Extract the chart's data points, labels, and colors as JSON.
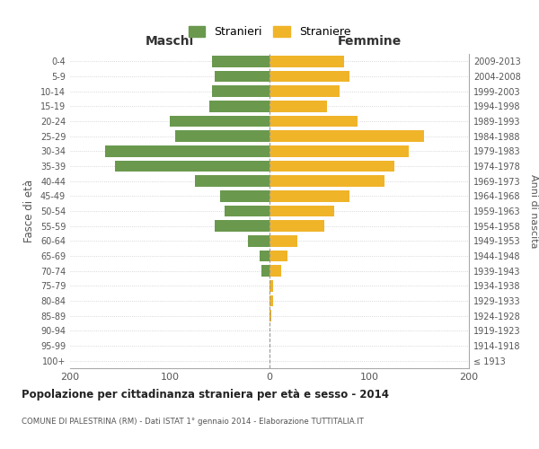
{
  "age_groups": [
    "100+",
    "95-99",
    "90-94",
    "85-89",
    "80-84",
    "75-79",
    "70-74",
    "65-69",
    "60-64",
    "55-59",
    "50-54",
    "45-49",
    "40-44",
    "35-39",
    "30-34",
    "25-29",
    "20-24",
    "15-19",
    "10-14",
    "5-9",
    "0-4"
  ],
  "birth_years": [
    "≤ 1913",
    "1914-1918",
    "1919-1923",
    "1924-1928",
    "1929-1933",
    "1934-1938",
    "1939-1943",
    "1944-1948",
    "1949-1953",
    "1954-1958",
    "1959-1963",
    "1964-1968",
    "1969-1973",
    "1974-1978",
    "1979-1983",
    "1984-1988",
    "1989-1993",
    "1994-1998",
    "1999-2003",
    "2004-2008",
    "2009-2013"
  ],
  "males": [
    0,
    0,
    0,
    0,
    0,
    0,
    8,
    10,
    22,
    55,
    45,
    50,
    75,
    155,
    165,
    95,
    100,
    60,
    58,
    55,
    58
  ],
  "females": [
    0,
    0,
    0,
    2,
    4,
    4,
    12,
    18,
    28,
    55,
    65,
    80,
    115,
    125,
    140,
    155,
    88,
    58,
    70,
    80,
    75
  ],
  "male_color": "#6a994e",
  "female_color": "#f0b429",
  "dashed_line_color": "#999999",
  "grid_color": "#cccccc",
  "background_color": "#ffffff",
  "title": "Popolazione per cittadinanza straniera per età e sesso - 2014",
  "subtitle": "COMUNE DI PALESTRINA (RM) - Dati ISTAT 1° gennaio 2014 - Elaborazione TUTTITALIA.IT",
  "xlabel_left": "Maschi",
  "xlabel_right": "Femmine",
  "ylabel_left": "Fasce di età",
  "ylabel_right": "Anni di nascita",
  "legend_male": "Stranieri",
  "legend_female": "Straniere",
  "xlim": 200,
  "bar_height": 0.75
}
